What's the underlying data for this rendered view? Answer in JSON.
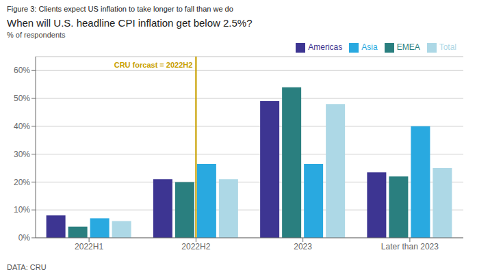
{
  "chart_data": {
    "type": "bar",
    "figure_title": "Figure 3: Clients expect US inflation to take longer to fall than we do",
    "title": "When will U.S. headline CPI inflation get below 2.5%?",
    "subtitle": "% of respondents",
    "source": "DATA: CRU",
    "categories": [
      "2022H1",
      "2022H2",
      "2023",
      "Later than 2023"
    ],
    "series": [
      {
        "name": "Americas",
        "color": "#3d3592",
        "values": [
          0.08,
          0.21,
          0.49,
          0.235
        ]
      },
      {
        "name": "EMEA",
        "color": "#2a7f7f",
        "values": [
          0.04,
          0.2,
          0.54,
          0.22
        ]
      },
      {
        "name": "Asia",
        "color": "#29a9e0",
        "values": [
          0.07,
          0.265,
          0.265,
          0.4
        ]
      },
      {
        "name": "Total",
        "color": "#add8e6",
        "values": [
          0.06,
          0.21,
          0.48,
          0.25
        ]
      }
    ],
    "ylim": [
      0,
      0.65
    ],
    "yticks": [
      {
        "value": 0.0,
        "label": "0%"
      },
      {
        "value": 0.1,
        "label": "10%"
      },
      {
        "value": 0.2,
        "label": "20%"
      },
      {
        "value": 0.3,
        "label": "30%"
      },
      {
        "value": 0.4,
        "label": "40%"
      },
      {
        "value": 0.5,
        "label": "50%"
      },
      {
        "value": 0.6,
        "label": "60%"
      }
    ],
    "grid": true,
    "legend": "upper right",
    "annotations": [
      {
        "text": "CRU forcast = 2022H2",
        "x": "2022H2",
        "color": "#c8a000"
      }
    ]
  }
}
